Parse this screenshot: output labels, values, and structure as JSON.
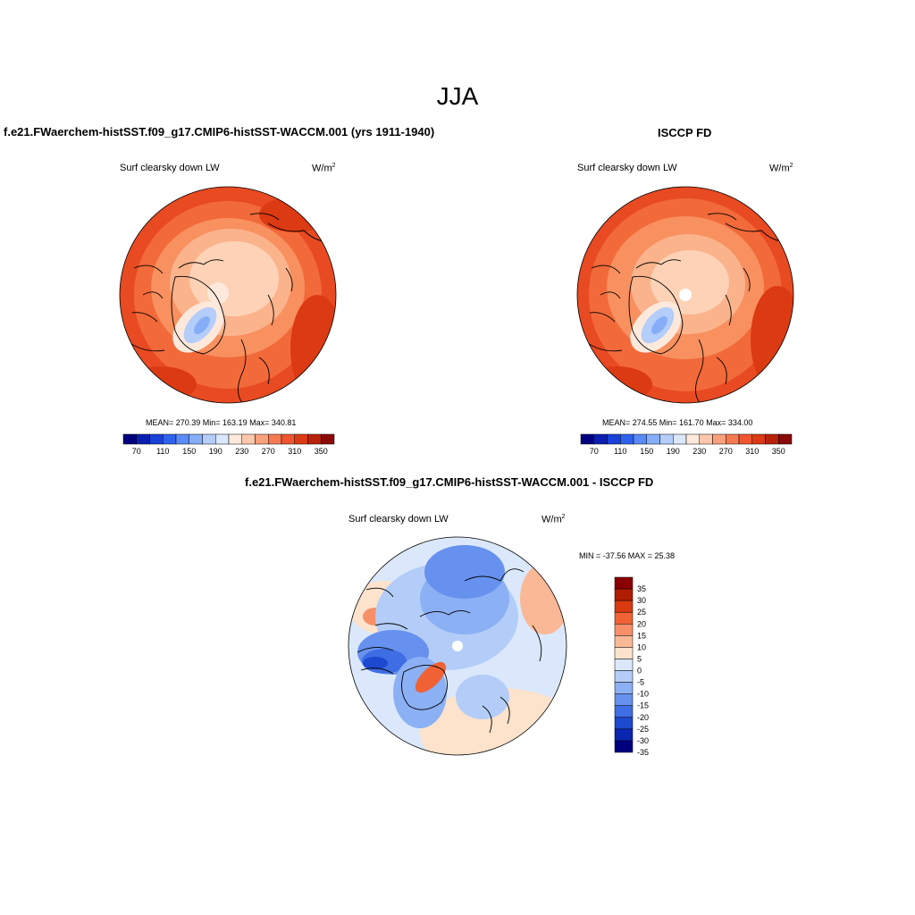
{
  "title": "JJA",
  "panels": [
    {
      "title": "f.e21.FWaerchem-histSST.f09_g17.CMIP6-histSST-WACCM.001 (yrs 1911-1940)",
      "variable": "Surf clearsky down LW",
      "units_base": "W/m",
      "units_exp": "2",
      "stats": "MEAN= 270.39  Min= 163.19  Max= 340.81"
    },
    {
      "title": "ISCCP FD",
      "variable": "Surf clearsky down LW",
      "units_base": "W/m",
      "units_exp": "2",
      "stats": "MEAN= 274.55  Min= 161.70  Max= 334.00"
    },
    {
      "title": "f.e21.FWaerchem-histSST.f09_g17.CMIP6-histSST-WACCM.001 - ISCCP FD",
      "variable": "Surf clearsky down LW",
      "units_base": "W/m",
      "units_exp": "2",
      "stats": "MIN = -37.56 MAX =  25.38"
    }
  ],
  "abs_colorbar": {
    "colors": [
      "#00007f",
      "#0a1fb0",
      "#1941d8",
      "#2f62ec",
      "#5a8af5",
      "#86aef8",
      "#b4cdf9",
      "#dbe7fb",
      "#fde9dc",
      "#fcc7ab",
      "#f9a07c",
      "#f57a52",
      "#ef5530",
      "#dc3a12",
      "#b8220a",
      "#8a0a0a"
    ],
    "labels": [
      "70",
      "110",
      "150",
      "190",
      "230",
      "270",
      "310",
      "350"
    ]
  },
  "diff_colorbar": {
    "colors": [
      "#8a0000",
      "#b01c00",
      "#da3a10",
      "#f06234",
      "#f79068",
      "#fbb896",
      "#fde2cc",
      "#dbe8fb",
      "#b3cdf8",
      "#8bb0f4",
      "#6691ee",
      "#3e6de4",
      "#1d48d0",
      "#0a26b0",
      "#00007f"
    ],
    "labels": [
      "35",
      "30",
      "25",
      "20",
      "15",
      "10",
      "5",
      "0",
      "-5",
      "-10",
      "-15",
      "-20",
      "-25",
      "-30",
      "-35"
    ]
  }
}
